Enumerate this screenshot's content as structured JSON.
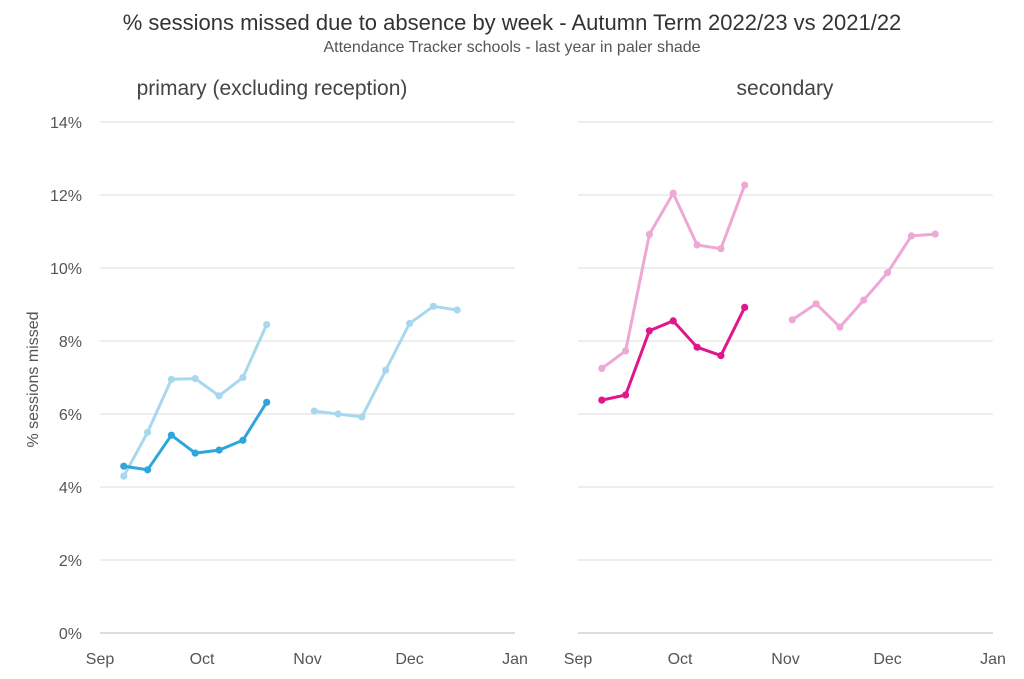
{
  "title": "% sessions missed due to absence by week - Autumn Term 2022/23 vs 2021/22",
  "subtitle": "Attendance Tracker schools - last year in paler shade",
  "chart_data": [
    {
      "type": "line",
      "panel_title": "primary (excluding reception)",
      "ylabel": "% sessions missed",
      "ylim": [
        0,
        14
      ],
      "yticks": [
        "0%",
        "2%",
        "4%",
        "6%",
        "8%",
        "10%",
        "12%",
        "14%"
      ],
      "xlim": [
        "2022-09-01",
        "2023-01-01"
      ],
      "xticks": [
        {
          "date": "2022-09-01",
          "label": "Sep"
        },
        {
          "date": "2022-10-01",
          "label": "Oct"
        },
        {
          "date": "2022-11-01",
          "label": "Nov"
        },
        {
          "date": "2022-12-01",
          "label": "Dec"
        },
        {
          "date": "2023-01-01",
          "label": "Jan"
        }
      ],
      "grid": true,
      "series": [
        {
          "color": "#a8d8ee",
          "segments": [
            [
              {
                "x": "2022-09-08",
                "y": 4.3
              },
              {
                "x": "2022-09-15",
                "y": 5.5
              },
              {
                "x": "2022-09-22",
                "y": 6.95
              },
              {
                "x": "2022-09-29",
                "y": 6.97
              },
              {
                "x": "2022-10-06",
                "y": 6.5
              },
              {
                "x": "2022-10-13",
                "y": 7.0
              },
              {
                "x": "2022-10-20",
                "y": 8.45
              }
            ],
            [
              {
                "x": "2022-11-03",
                "y": 6.08
              },
              {
                "x": "2022-11-10",
                "y": 6.0
              },
              {
                "x": "2022-11-17",
                "y": 5.92
              },
              {
                "x": "2022-11-24",
                "y": 7.2
              },
              {
                "x": "2022-12-01",
                "y": 8.48
              },
              {
                "x": "2022-12-08",
                "y": 8.95
              },
              {
                "x": "2022-12-15",
                "y": 8.85
              }
            ]
          ]
        },
        {
          "color": "#2ea6dc",
          "segments": [
            [
              {
                "x": "2022-09-08",
                "y": 4.57
              },
              {
                "x": "2022-09-15",
                "y": 4.47
              },
              {
                "x": "2022-09-22",
                "y": 5.42
              },
              {
                "x": "2022-09-29",
                "y": 4.93
              },
              {
                "x": "2022-10-06",
                "y": 5.01
              },
              {
                "x": "2022-10-13",
                "y": 5.28
              },
              {
                "x": "2022-10-20",
                "y": 6.32
              }
            ]
          ]
        }
      ]
    },
    {
      "type": "line",
      "panel_title": "secondary",
      "ylim": [
        0,
        14
      ],
      "xlim": [
        "2022-09-01",
        "2023-01-01"
      ],
      "xticks": [
        {
          "date": "2022-09-01",
          "label": "Sep"
        },
        {
          "date": "2022-10-01",
          "label": "Oct"
        },
        {
          "date": "2022-11-01",
          "label": "Nov"
        },
        {
          "date": "2022-12-01",
          "label": "Dec"
        },
        {
          "date": "2023-01-01",
          "label": "Jan"
        }
      ],
      "grid": true,
      "series": [
        {
          "color": "#eea8d6",
          "segments": [
            [
              {
                "x": "2022-09-08",
                "y": 7.25
              },
              {
                "x": "2022-09-15",
                "y": 7.73
              },
              {
                "x": "2022-09-22",
                "y": 10.92
              },
              {
                "x": "2022-09-29",
                "y": 12.05
              },
              {
                "x": "2022-10-06",
                "y": 10.63
              },
              {
                "x": "2022-10-13",
                "y": 10.53
              },
              {
                "x": "2022-10-20",
                "y": 12.27
              }
            ],
            [
              {
                "x": "2022-11-03",
                "y": 8.58
              },
              {
                "x": "2022-11-10",
                "y": 9.02
              },
              {
                "x": "2022-11-17",
                "y": 8.38
              },
              {
                "x": "2022-11-24",
                "y": 9.12
              },
              {
                "x": "2022-12-01",
                "y": 9.87
              },
              {
                "x": "2022-12-08",
                "y": 10.88
              },
              {
                "x": "2022-12-15",
                "y": 10.93
              }
            ]
          ]
        },
        {
          "color": "#e0168c",
          "segments": [
            [
              {
                "x": "2022-09-08",
                "y": 6.38
              },
              {
                "x": "2022-09-15",
                "y": 6.52
              },
              {
                "x": "2022-09-22",
                "y": 8.28
              },
              {
                "x": "2022-09-29",
                "y": 8.55
              },
              {
                "x": "2022-10-06",
                "y": 7.83
              },
              {
                "x": "2022-10-13",
                "y": 7.6
              },
              {
                "x": "2022-10-20",
                "y": 8.92
              }
            ]
          ]
        }
      ]
    }
  ]
}
